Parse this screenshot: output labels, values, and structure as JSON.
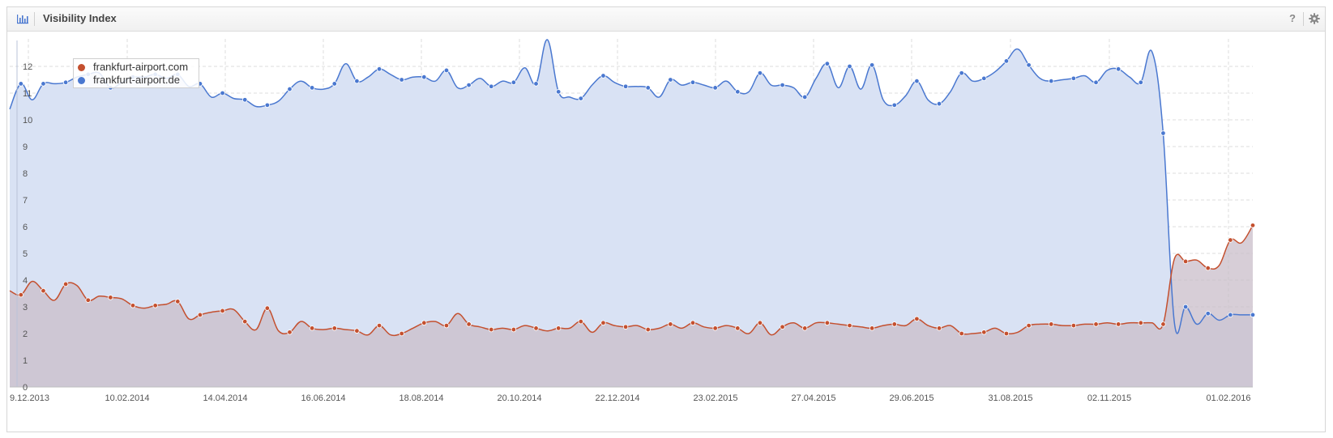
{
  "header": {
    "title": "Visibility Index",
    "help_label": "?",
    "chart_icon": "bar-chart-icon",
    "settings_icon": "gear-icon"
  },
  "colors": {
    "series_com": "#c4502f",
    "series_de": "#4a78d0",
    "fill_de": "#d9e2f4",
    "fill_com": "#c9bdca",
    "fill_com_after": "#f0d8d0"
  },
  "chart_data": {
    "type": "area",
    "title": "Visibility Index",
    "xlabel": "",
    "ylabel": "",
    "ylim": [
      0,
      13
    ],
    "y_ticks": [
      "0",
      "1",
      "2",
      "3",
      "4",
      "5",
      "6",
      "7",
      "8",
      "9",
      "10",
      "11",
      "12"
    ],
    "x_ticks": [
      "9.12.2013",
      "10.02.2014",
      "14.04.2014",
      "16.06.2014",
      "18.08.2014",
      "20.10.2014",
      "22.12.2014",
      "23.02.2015",
      "27.04.2015",
      "29.06.2015",
      "31.08.2015",
      "02.11.2015",
      "01.02.2016"
    ],
    "legend_position": "top-left",
    "grid": true,
    "series": [
      {
        "name": "frankfurt-airport.com",
        "values": [
          3.6,
          3.45,
          3.95,
          3.6,
          3.25,
          3.85,
          3.8,
          3.25,
          3.4,
          3.35,
          3.3,
          3.05,
          2.95,
          3.05,
          3.1,
          3.2,
          2.55,
          2.7,
          2.8,
          2.85,
          2.9,
          2.45,
          2.15,
          2.95,
          2.1,
          2.05,
          2.45,
          2.2,
          2.15,
          2.2,
          2.15,
          2.1,
          1.95,
          2.3,
          1.95,
          2.0,
          2.2,
          2.4,
          2.45,
          2.3,
          2.75,
          2.35,
          2.25,
          2.15,
          2.2,
          2.15,
          2.3,
          2.2,
          2.1,
          2.2,
          2.2,
          2.45,
          2.05,
          2.4,
          2.3,
          2.25,
          2.3,
          2.15,
          2.2,
          2.35,
          2.2,
          2.4,
          2.25,
          2.2,
          2.3,
          2.2,
          2.0,
          2.4,
          1.95,
          2.25,
          2.4,
          2.2,
          2.4,
          2.4,
          2.35,
          2.3,
          2.25,
          2.2,
          2.3,
          2.35,
          2.3,
          2.55,
          2.3,
          2.2,
          2.3,
          2.0,
          2.0,
          2.05,
          2.2,
          2.0,
          2.05,
          2.3,
          2.35,
          2.35,
          2.3,
          2.3,
          2.35,
          2.35,
          2.4,
          2.35,
          2.4,
          2.4,
          2.4,
          2.35,
          4.8,
          4.7,
          4.75,
          4.45,
          4.55,
          5.5,
          5.4,
          6.05
        ]
      },
      {
        "name": "frankfurt-airport.de",
        "values": [
          10.4,
          11.35,
          10.75,
          11.35,
          11.35,
          11.4,
          11.6,
          11.7,
          11.75,
          11.2,
          11.4,
          11.6,
          11.6,
          11.7,
          11.55,
          11.7,
          11.25,
          11.35,
          10.85,
          11.0,
          10.8,
          10.75,
          10.5,
          10.55,
          10.7,
          11.15,
          11.45,
          11.2,
          11.15,
          11.35,
          12.1,
          11.45,
          11.6,
          11.9,
          11.7,
          11.5,
          11.6,
          11.6,
          11.45,
          11.85,
          11.2,
          11.3,
          11.55,
          11.25,
          11.45,
          11.4,
          11.95,
          11.35,
          13.0,
          11.05,
          10.85,
          10.8,
          11.3,
          11.65,
          11.4,
          11.25,
          11.25,
          11.2,
          10.85,
          11.5,
          11.3,
          11.4,
          11.3,
          11.2,
          11.45,
          11.05,
          11.05,
          11.75,
          11.3,
          11.3,
          11.2,
          10.85,
          11.55,
          12.1,
          11.2,
          12.0,
          11.15,
          12.05,
          10.75,
          10.55,
          10.9,
          11.45,
          10.75,
          10.6,
          11.05,
          11.75,
          11.45,
          11.55,
          11.8,
          12.2,
          12.65,
          12.05,
          11.55,
          11.45,
          11.5,
          11.55,
          11.65,
          11.4,
          11.85,
          11.9,
          11.6,
          11.4,
          12.55,
          9.5,
          2.4,
          3.0,
          2.35,
          2.75,
          2.5,
          2.7,
          2.7,
          2.7
        ],
        "markers_every": 3
      }
    ]
  }
}
